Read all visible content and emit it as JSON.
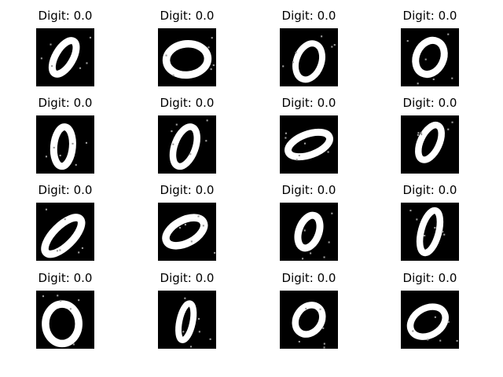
{
  "figure": {
    "rows": 4,
    "cols": 4,
    "background": "#ffffff",
    "panels": [
      {
        "title": "Digit: 0.0",
        "depicts": "handwritten-zero"
      },
      {
        "title": "Digit: 0.0",
        "depicts": "handwritten-zero"
      },
      {
        "title": "Digit: 0.0",
        "depicts": "handwritten-zero"
      },
      {
        "title": "Digit: 0.0",
        "depicts": "handwritten-zero"
      },
      {
        "title": "Digit: 0.0",
        "depicts": "handwritten-zero"
      },
      {
        "title": "Digit: 0.0",
        "depicts": "handwritten-zero"
      },
      {
        "title": "Digit: 0.0",
        "depicts": "handwritten-zero"
      },
      {
        "title": "Digit: 0.0",
        "depicts": "handwritten-zero"
      },
      {
        "title": "Digit: 0.0",
        "depicts": "handwritten-zero"
      },
      {
        "title": "Digit: 0.0",
        "depicts": "handwritten-zero"
      },
      {
        "title": "Digit: 0.0",
        "depicts": "handwritten-zero"
      },
      {
        "title": "Digit: 0.0",
        "depicts": "handwritten-zero"
      },
      {
        "title": "Digit: 0.0",
        "depicts": "handwritten-zero"
      },
      {
        "title": "Digit: 0.0",
        "depicts": "handwritten-zero"
      },
      {
        "title": "Digit: 0.0",
        "depicts": "handwritten-zero"
      },
      {
        "title": "Digit: 0.0",
        "depicts": "handwritten-zero"
      }
    ],
    "colors": {
      "image_background": "#000000",
      "stroke": "#ffffff",
      "title_text": "#000000"
    }
  }
}
